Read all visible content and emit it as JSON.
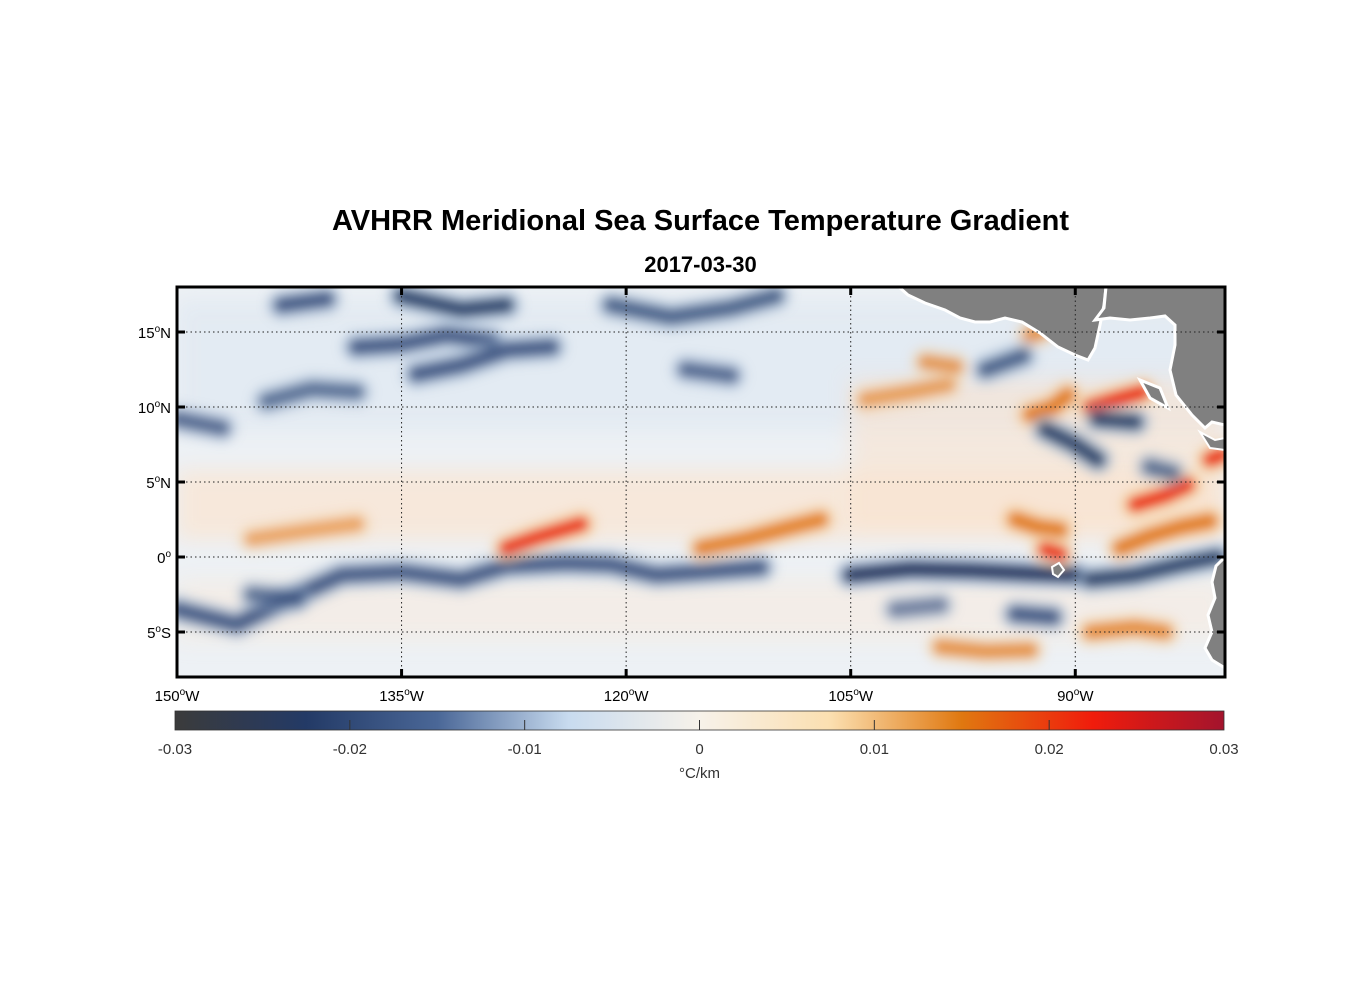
{
  "title": "AVHRR Meridional Sea Surface Temperature Gradient",
  "subtitle": "2017-03-30",
  "map": {
    "lon_range": [
      -150,
      -80
    ],
    "lat_range": [
      -8,
      18
    ],
    "lon_ticks": [
      {
        "value": -150,
        "num": "150",
        "hem": "W"
      },
      {
        "value": -135,
        "num": "135",
        "hem": "W"
      },
      {
        "value": -120,
        "num": "120",
        "hem": "W"
      },
      {
        "value": -105,
        "num": "105",
        "hem": "W"
      },
      {
        "value": -90,
        "num": "90",
        "hem": "W"
      }
    ],
    "lat_ticks": [
      {
        "value": 15,
        "num": "15",
        "hem": "N"
      },
      {
        "value": 10,
        "num": "10",
        "hem": "N"
      },
      {
        "value": 5,
        "num": "5",
        "hem": "N"
      },
      {
        "value": 0,
        "num": "0",
        "hem": ""
      },
      {
        "value": -5,
        "num": "5",
        "hem": "S"
      }
    ],
    "grid": true,
    "land_color": "#808080",
    "features": [
      {
        "name": "cold-band-equator-west",
        "type": "cold",
        "strength": 0.85,
        "pts": [
          [
            -150,
            -3.5
          ],
          [
            -146,
            -4.5
          ],
          [
            -143,
            -3
          ],
          [
            -139,
            -1.2
          ],
          [
            -135,
            -1
          ],
          [
            -131,
            -1.5
          ],
          [
            -128,
            -0.6
          ],
          [
            -124,
            -0.4
          ],
          [
            -121,
            -0.5
          ],
          [
            -118,
            -1.2
          ],
          [
            -115,
            -1
          ],
          [
            -111,
            -0.7
          ]
        ]
      },
      {
        "name": "cold-band-equator-east",
        "type": "cold",
        "strength": 1.0,
        "pts": [
          [
            -105,
            -1.2
          ],
          [
            -101,
            -0.8
          ],
          [
            -97,
            -0.9
          ],
          [
            -93,
            -1.1
          ],
          [
            -90,
            -1.2
          ]
        ]
      },
      {
        "name": "cold-band-equator-far-east",
        "type": "cold",
        "strength": 0.9,
        "pts": [
          [
            -89,
            -1.5
          ],
          [
            -86,
            -1.2
          ],
          [
            -83,
            -0.5
          ],
          [
            -80.5,
            0
          ]
        ]
      },
      {
        "name": "warm-front-1",
        "type": "warm",
        "strength": 0.55,
        "pts": [
          [
            -145,
            1.2
          ],
          [
            -141,
            1.8
          ],
          [
            -138,
            2.2
          ]
        ]
      },
      {
        "name": "warm-front-2",
        "type": "warm",
        "strength": 0.95,
        "pts": [
          [
            -128,
            0.6
          ],
          [
            -126,
            1.3
          ],
          [
            -123,
            2.2
          ]
        ]
      },
      {
        "name": "warm-front-3",
        "type": "warm",
        "strength": 0.85,
        "pts": [
          [
            -115,
            0.6
          ],
          [
            -112,
            1.2
          ],
          [
            -109,
            2
          ],
          [
            -107,
            2.5
          ]
        ]
      },
      {
        "name": "warm-front-4",
        "type": "warm",
        "strength": 0.9,
        "pts": [
          [
            -94,
            2.5
          ],
          [
            -92.5,
            2
          ],
          [
            -91,
            1.8
          ]
        ]
      },
      {
        "name": "warm-front-5",
        "type": "warm",
        "strength": 1.0,
        "pts": [
          [
            -92,
            0.5
          ],
          [
            -91,
            0.2
          ]
        ]
      },
      {
        "name": "warm-front-6",
        "type": "warm",
        "strength": 0.9,
        "pts": [
          [
            -87,
            0.6
          ],
          [
            -85,
            1.4
          ],
          [
            -83,
            2
          ],
          [
            -81,
            2.4
          ]
        ]
      },
      {
        "name": "warm-front-7",
        "type": "warm",
        "strength": 1.0,
        "pts": [
          [
            -86,
            3.5
          ],
          [
            -84,
            4.1
          ],
          [
            -82.5,
            4.8
          ]
        ]
      },
      {
        "name": "warm-front-8",
        "type": "warm",
        "strength": 1.0,
        "pts": [
          [
            -81,
            6.5
          ],
          [
            -80.2,
            6.8
          ]
        ]
      },
      {
        "name": "warm-front-9",
        "type": "warm",
        "strength": 1.0,
        "pts": [
          [
            -89,
            10
          ],
          [
            -87,
            10.6
          ],
          [
            -85.5,
            11
          ]
        ]
      },
      {
        "name": "warm-front-10",
        "type": "warm",
        "strength": 0.9,
        "pts": [
          [
            -93,
            9.5
          ],
          [
            -91.5,
            10
          ],
          [
            -90.5,
            10.8
          ]
        ]
      },
      {
        "name": "warm-front-11",
        "type": "warm",
        "strength": 0.6,
        "pts": [
          [
            -104,
            10.5
          ],
          [
            -101,
            11
          ],
          [
            -98.5,
            11.5
          ]
        ]
      },
      {
        "name": "warm-front-12",
        "type": "warm",
        "strength": 0.65,
        "pts": [
          [
            -100,
            13
          ],
          [
            -98,
            12.7
          ]
        ]
      },
      {
        "name": "warm-front-13",
        "type": "warm",
        "strength": 0.7,
        "pts": [
          [
            -99,
            -6
          ],
          [
            -96,
            -6.3
          ],
          [
            -93,
            -6.2
          ]
        ]
      },
      {
        "name": "warm-front-14",
        "type": "warm",
        "strength": 0.75,
        "pts": [
          [
            -89,
            -5
          ],
          [
            -86,
            -4.7
          ],
          [
            -84,
            -5
          ]
        ]
      },
      {
        "name": "warm-front-15",
        "type": "warm",
        "strength": 0.7,
        "pts": [
          [
            -93,
            14.8
          ],
          [
            -92.3,
            15
          ]
        ]
      },
      {
        "name": "cold-north-1",
        "type": "cold",
        "strength": 0.85,
        "pts": [
          [
            -143,
            16.8
          ],
          [
            -140,
            17.2
          ]
        ]
      },
      {
        "name": "cold-north-2",
        "type": "cold",
        "strength": 0.9,
        "pts": [
          [
            -135,
            17.4
          ],
          [
            -131,
            16.5
          ],
          [
            -128,
            16.8
          ]
        ]
      },
      {
        "name": "cold-north-3",
        "type": "cold",
        "strength": 0.85,
        "pts": [
          [
            -138,
            14
          ],
          [
            -135,
            14.2
          ],
          [
            -132,
            14.8
          ],
          [
            -129,
            14.4
          ]
        ]
      },
      {
        "name": "cold-north-4",
        "type": "cold",
        "strength": 0.85,
        "pts": [
          [
            -134,
            12.2
          ],
          [
            -131,
            12.8
          ],
          [
            -128,
            13.8
          ],
          [
            -125,
            14
          ]
        ]
      },
      {
        "name": "cold-north-5",
        "type": "cold",
        "strength": 0.8,
        "pts": [
          [
            -121,
            16.8
          ],
          [
            -117,
            16
          ],
          [
            -113,
            16.6
          ],
          [
            -110,
            17.4
          ]
        ]
      },
      {
        "name": "cold-north-6",
        "type": "cold",
        "strength": 0.75,
        "pts": [
          [
            -116,
            12.5
          ],
          [
            -113,
            12.1
          ]
        ]
      },
      {
        "name": "cold-north-7",
        "type": "cold",
        "strength": 0.75,
        "pts": [
          [
            -150,
            9.2
          ],
          [
            -147,
            8.6
          ]
        ]
      },
      {
        "name": "cold-north-8",
        "type": "cold",
        "strength": 0.7,
        "pts": [
          [
            -144,
            10.4
          ],
          [
            -141,
            11.2
          ],
          [
            -138,
            11
          ]
        ]
      },
      {
        "name": "cold-east-1",
        "type": "cold",
        "strength": 0.9,
        "pts": [
          [
            -92,
            8.5
          ],
          [
            -90,
            7.5
          ],
          [
            -88.5,
            6.5
          ]
        ]
      },
      {
        "name": "cold-east-2",
        "type": "cold",
        "strength": 0.9,
        "pts": [
          [
            -88.5,
            9.2
          ],
          [
            -86,
            9
          ]
        ]
      },
      {
        "name": "cold-east-3",
        "type": "cold",
        "strength": 0.8,
        "pts": [
          [
            -96,
            12.5
          ],
          [
            -93.5,
            13.4
          ]
        ]
      },
      {
        "name": "cold-east-4",
        "type": "cold",
        "strength": 0.85,
        "pts": [
          [
            -94,
            -3.8
          ],
          [
            -91.5,
            -4
          ]
        ]
      },
      {
        "name": "cold-east-5",
        "type": "cold",
        "strength": 0.7,
        "pts": [
          [
            -85,
            6
          ],
          [
            -83.5,
            5.6
          ]
        ]
      },
      {
        "name": "cold-east-6",
        "type": "cold",
        "strength": 0.6,
        "pts": [
          [
            -102,
            -3.5
          ],
          [
            -99,
            -3.2
          ]
        ]
      },
      {
        "name": "cold-sw-1",
        "type": "cold",
        "strength": 0.7,
        "pts": [
          [
            -145,
            -2.5
          ],
          [
            -142,
            -2.8
          ]
        ]
      }
    ]
  },
  "colorbar": {
    "range": [
      -0.03,
      0.03
    ],
    "ticks": [
      "-0.03",
      "-0.02",
      "-0.01",
      "0",
      "0.01",
      "0.02",
      "0.03"
    ],
    "tick_values": [
      -0.03,
      -0.02,
      -0.01,
      0,
      0.01,
      0.02,
      0.03
    ],
    "label": "°C/km",
    "stops": [
      "#3b3b3b",
      "#233a66",
      "#4a6797",
      "#c8dbef",
      "#f7f2ea",
      "#fbdfb0",
      "#e07810",
      "#f01c0c",
      "#a3142d"
    ]
  }
}
